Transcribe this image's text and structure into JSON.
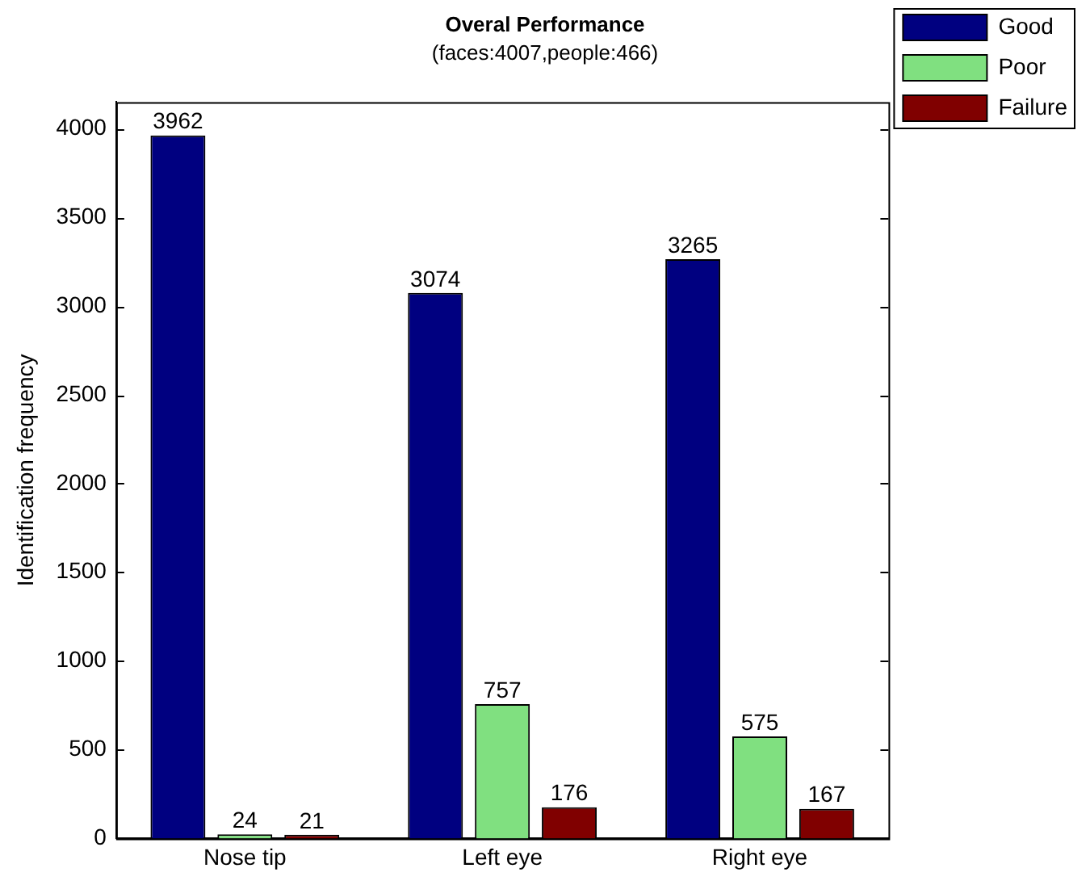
{
  "chart_data": {
    "type": "bar",
    "title": "Overal Performance",
    "subtitle": "(faces:4007,people:466)",
    "ylabel": "Identification frequency",
    "categories": [
      "Nose tip",
      "Left eye",
      "Right eye"
    ],
    "series": [
      {
        "name": "Good",
        "color": "#000080",
        "values": [
          3962,
          3074,
          3265
        ]
      },
      {
        "name": "Poor",
        "color": "#80e080",
        "values": [
          24,
          757,
          575
        ]
      },
      {
        "name": "Failure",
        "color": "#800000",
        "values": [
          21,
          176,
          167
        ]
      }
    ],
    "ylim": [
      0,
      4150
    ],
    "yticks": [
      0,
      500,
      1000,
      1500,
      2000,
      2500,
      3000,
      3500,
      4000
    ],
    "grid": false,
    "legend": "top right",
    "data_labels": true
  }
}
